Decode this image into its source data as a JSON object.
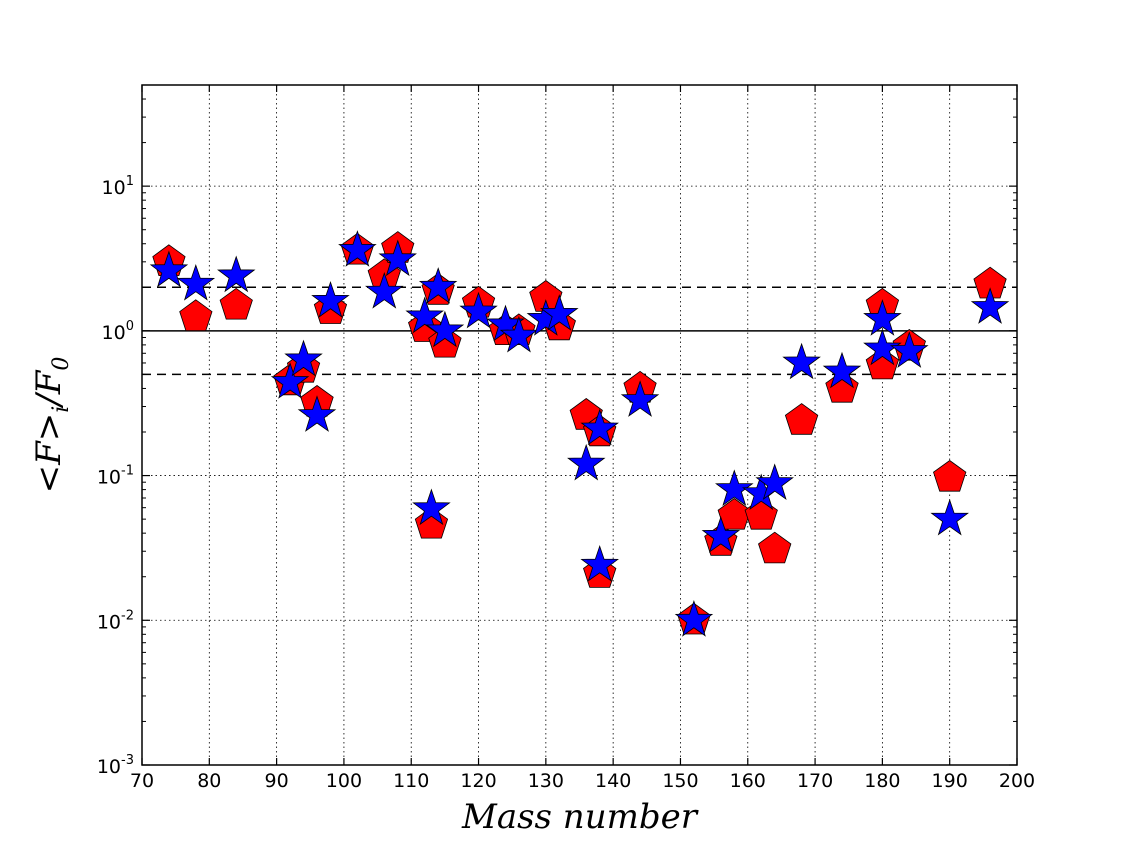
{
  "chart_data": {
    "type": "scatter",
    "title": "",
    "xlabel": "Mass number",
    "ylabel": "<F>_i / F_0",
    "xlim": [
      70,
      200
    ],
    "ylim": [
      0.001,
      50
    ],
    "yscale": "log",
    "grid": true,
    "x_ticks": [
      70,
      80,
      90,
      100,
      110,
      120,
      130,
      140,
      150,
      160,
      170,
      180,
      190,
      200
    ],
    "y_ticks": [
      {
        "value": 0.001,
        "base": "10",
        "exp": "-3"
      },
      {
        "value": 0.01,
        "base": "10",
        "exp": "-2"
      },
      {
        "value": 0.1,
        "base": "10",
        "exp": "-1"
      },
      {
        "value": 1,
        "base": "10",
        "exp": "0"
      },
      {
        "value": 10,
        "base": "10",
        "exp": "1"
      }
    ],
    "reference_lines": [
      {
        "y": 1,
        "style": "solid"
      },
      {
        "y": 2,
        "style": "dashed"
      },
      {
        "y": 0.5,
        "style": "dashed"
      }
    ],
    "series": [
      {
        "marker": "pentagon",
        "color": "#ff0000",
        "points": [
          [
            74,
            3.0
          ],
          [
            78,
            1.25
          ],
          [
            84,
            1.5
          ],
          [
            92,
            0.45
          ],
          [
            94,
            0.55
          ],
          [
            96,
            0.32
          ],
          [
            98,
            1.4
          ],
          [
            102,
            3.6
          ],
          [
            106,
            2.4
          ],
          [
            108,
            3.7
          ],
          [
            112,
            1.05
          ],
          [
            113,
            0.046
          ],
          [
            114,
            1.9
          ],
          [
            115,
            0.82
          ],
          [
            120,
            1.55
          ],
          [
            124,
            1.0
          ],
          [
            126,
            1.0
          ],
          [
            130,
            1.7
          ],
          [
            132,
            1.08
          ],
          [
            136,
            0.26
          ],
          [
            138,
            0.2
          ],
          [
            138,
            0.021
          ],
          [
            144,
            0.4
          ],
          [
            152,
            0.01
          ],
          [
            156,
            0.035
          ],
          [
            158,
            0.053
          ],
          [
            162,
            0.053
          ],
          [
            164,
            0.031
          ],
          [
            168,
            0.24
          ],
          [
            174,
            0.4
          ],
          [
            180,
            1.5
          ],
          [
            180,
            0.58
          ],
          [
            184,
            0.78
          ],
          [
            190,
            0.097
          ],
          [
            196,
            2.1
          ]
        ]
      },
      {
        "marker": "star",
        "color": "#0000ff",
        "points": [
          [
            74,
            2.6
          ],
          [
            78,
            2.1
          ],
          [
            84,
            2.4
          ],
          [
            92,
            0.44
          ],
          [
            94,
            0.63
          ],
          [
            96,
            0.26
          ],
          [
            98,
            1.6
          ],
          [
            102,
            3.6
          ],
          [
            106,
            1.85
          ],
          [
            108,
            3.1
          ],
          [
            112,
            1.25
          ],
          [
            113,
            0.059
          ],
          [
            114,
            2.0
          ],
          [
            115,
            1.0
          ],
          [
            120,
            1.35
          ],
          [
            124,
            1.1
          ],
          [
            126,
            0.92
          ],
          [
            130,
            1.2
          ],
          [
            132,
            1.3
          ],
          [
            136,
            0.12
          ],
          [
            138,
            0.21
          ],
          [
            138,
            0.024
          ],
          [
            144,
            0.33
          ],
          [
            152,
            0.01
          ],
          [
            156,
            0.038
          ],
          [
            158,
            0.08
          ],
          [
            162,
            0.075
          ],
          [
            164,
            0.088
          ],
          [
            168,
            0.6
          ],
          [
            174,
            0.52
          ],
          [
            180,
            1.2
          ],
          [
            180,
            0.75
          ],
          [
            184,
            0.72
          ],
          [
            190,
            0.05
          ],
          [
            196,
            1.45
          ]
        ]
      }
    ]
  }
}
